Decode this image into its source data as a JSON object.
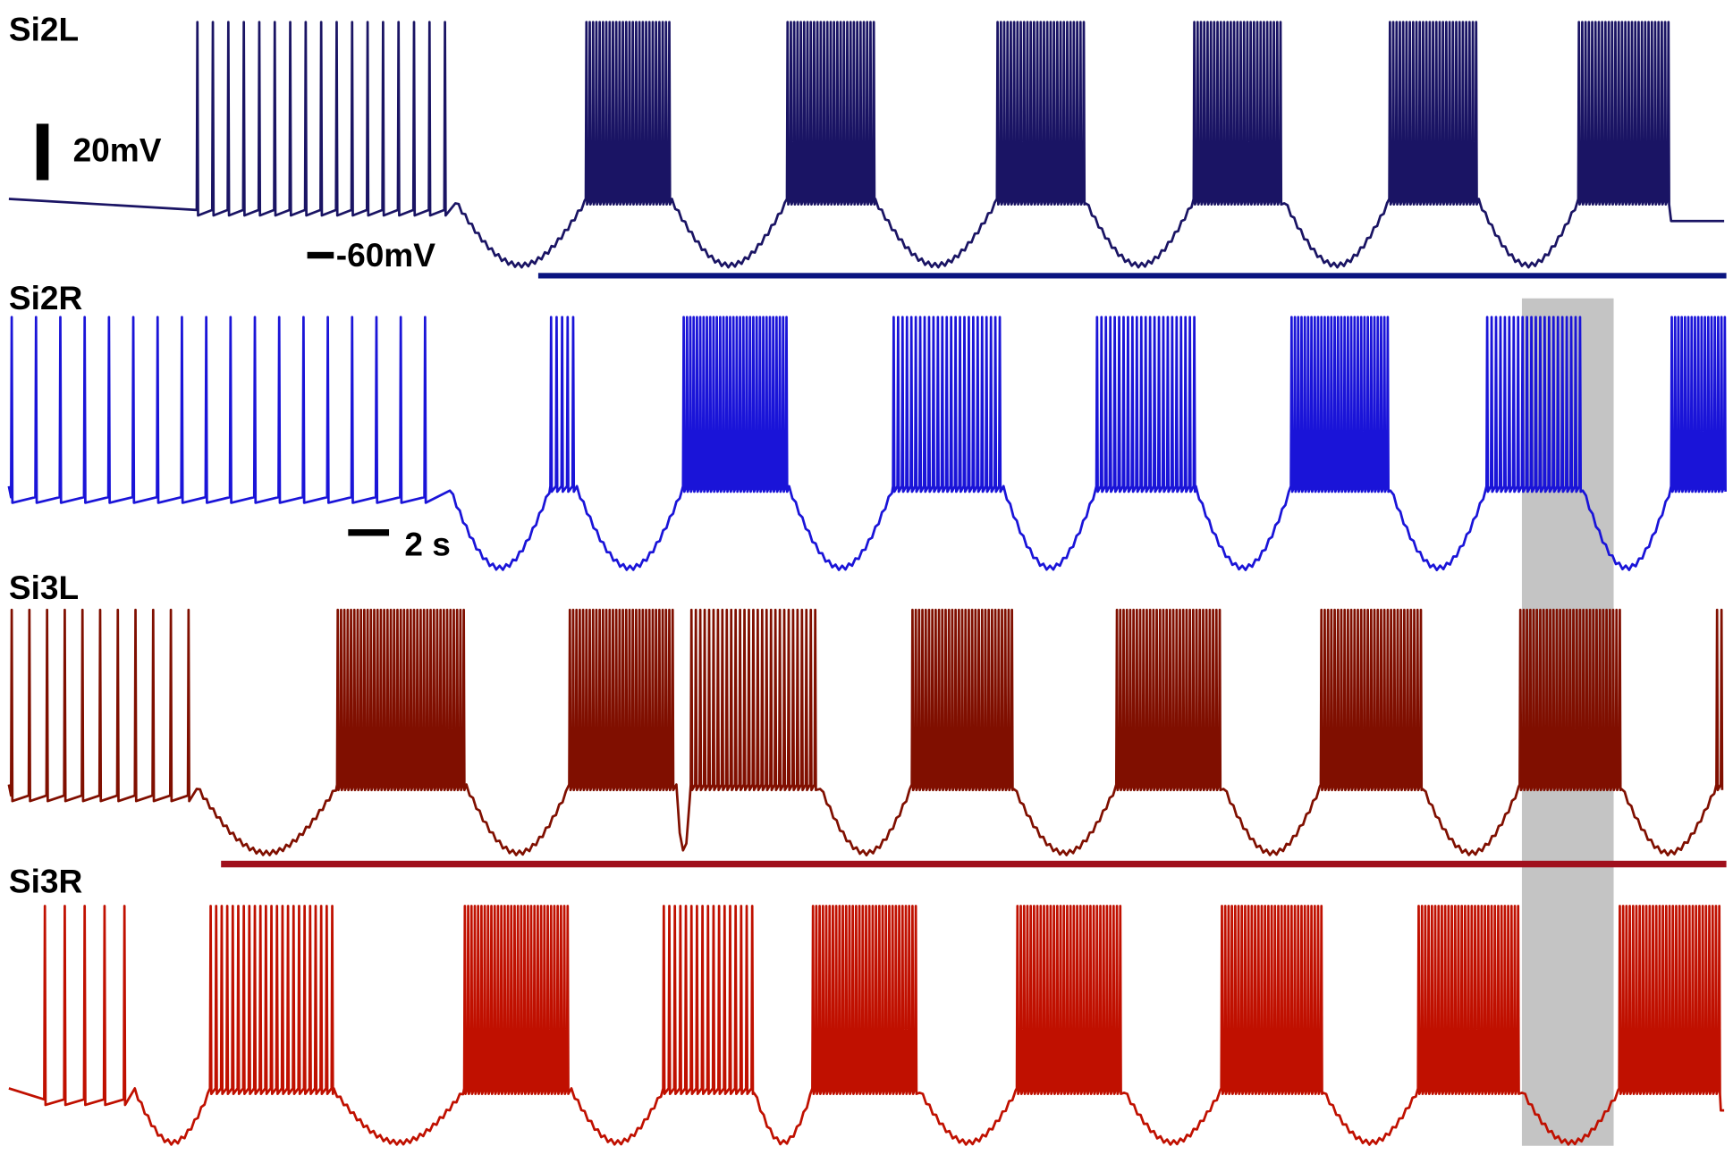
{
  "traces": [
    {
      "label": "Si2L"
    },
    {
      "label": "Si2R"
    },
    {
      "label": "Si3L"
    },
    {
      "label": "Si3R"
    }
  ],
  "scale_bars": {
    "voltage": "20mV",
    "potential": "-60mV",
    "time": "2 s"
  }
}
